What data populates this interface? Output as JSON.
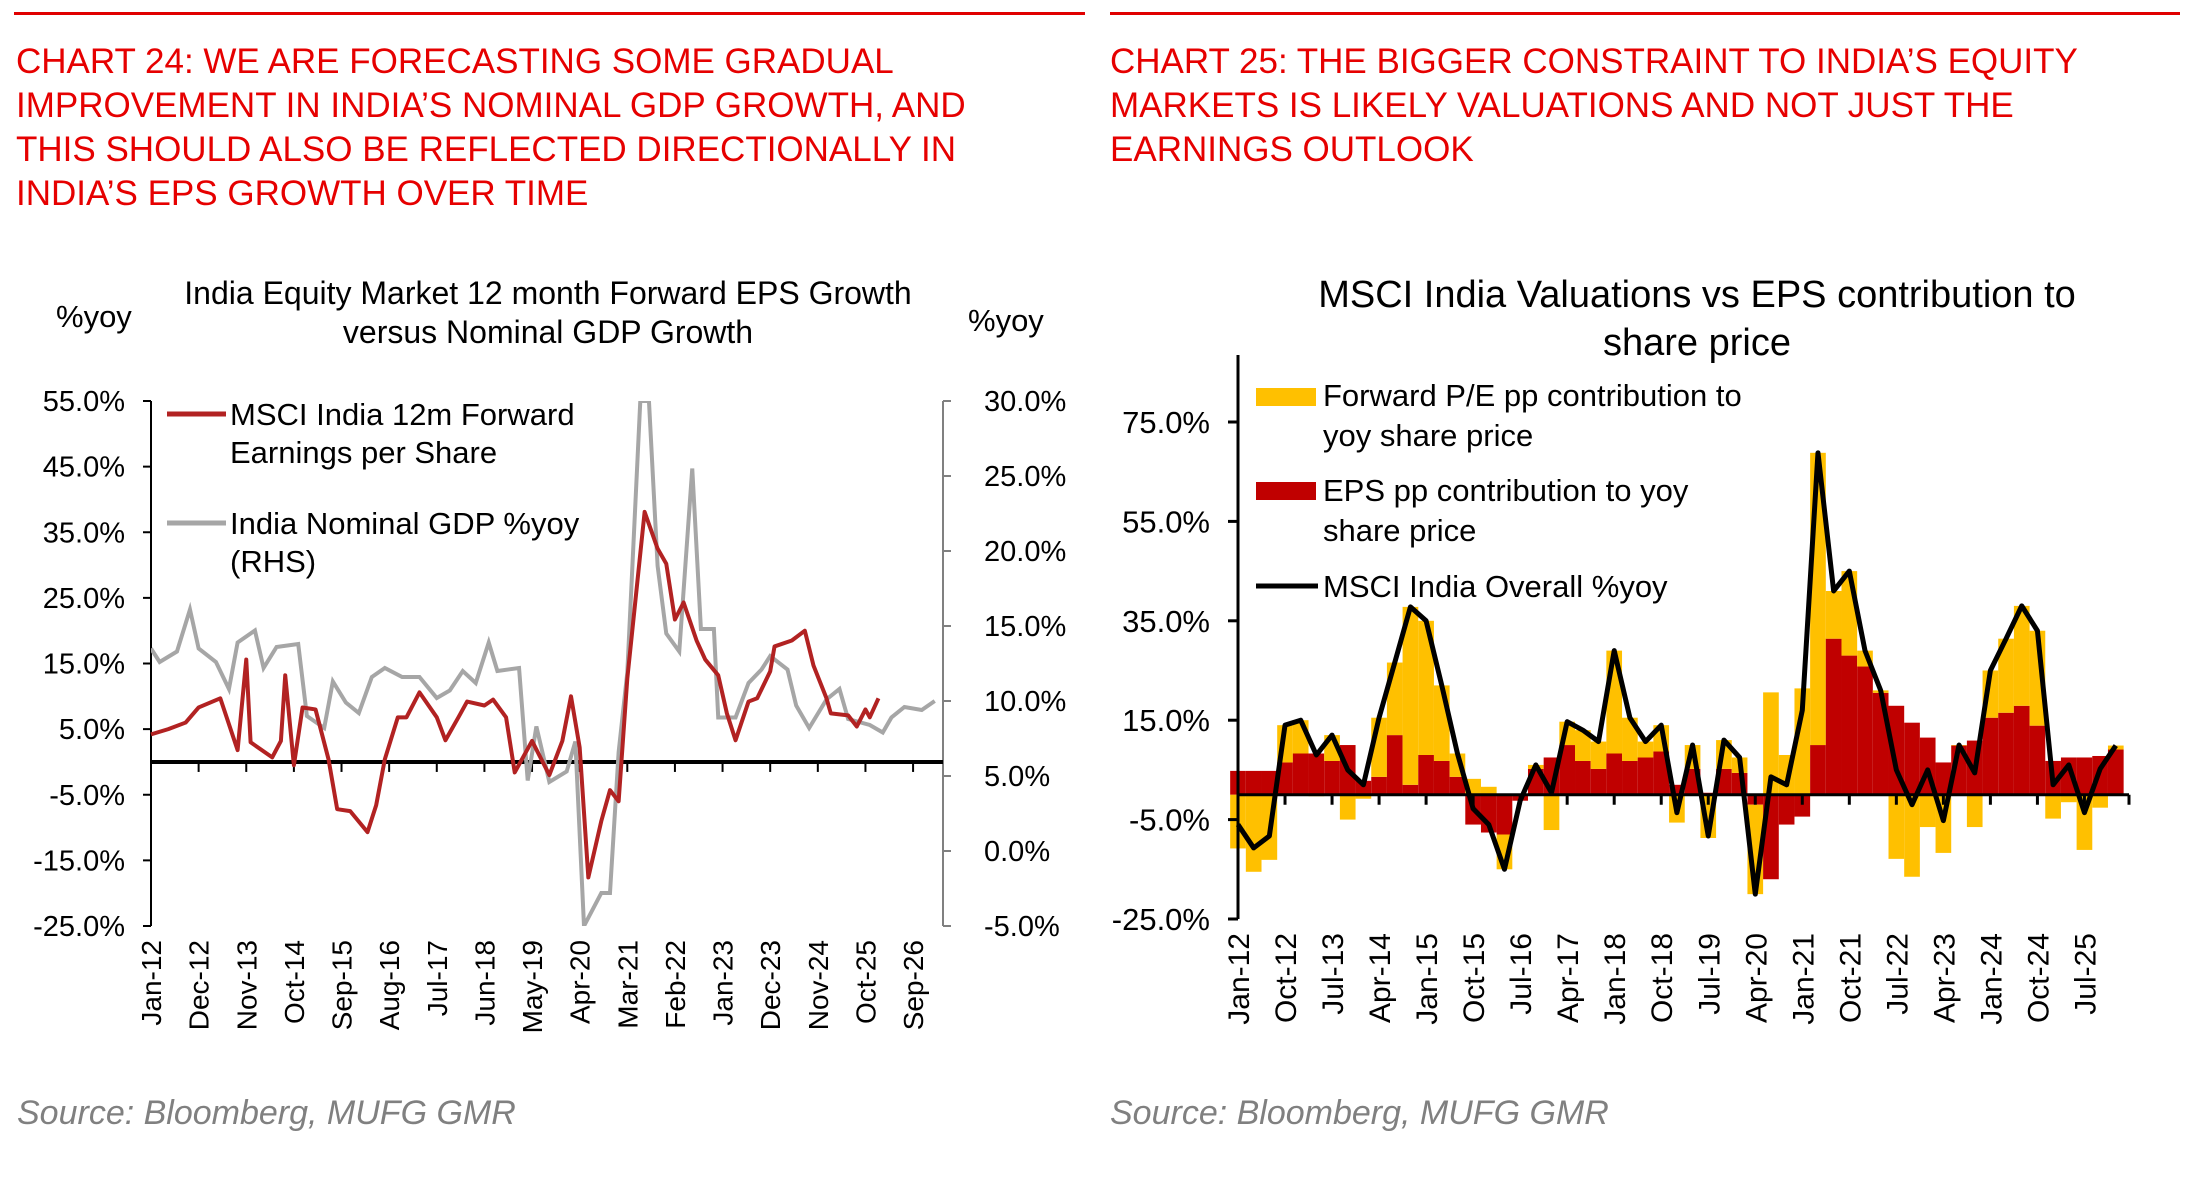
{
  "left_panel": {
    "headline": [
      "CHART 24: WE ARE FORECASTING SOME GRADUAL",
      "IMPROVEMENT IN INDIA’S NOMINAL GDP GROWTH, AND",
      "THIS SHOULD ALSO BE REFLECTED DIRECTIONALLY IN",
      "INDIA’S EPS GROWTH OVER TIME"
    ],
    "source": "Source: Bloomberg, MUFG GMR"
  },
  "right_panel": {
    "headline": [
      "CHART 25: THE BIGGER CONSTRAINT TO INDIA’S EQUITY",
      "MARKETS IS LIKELY VALUATIONS AND NOT JUST THE",
      "EARNINGS OUTLOOK"
    ],
    "source": "Source: Bloomberg, MUFG GMR"
  },
  "colors": {
    "headline": "#e60000",
    "eps_line": "#b22222",
    "gdp_line": "#a6a6a6",
    "pe_bar": "#ffc000",
    "eps_bar": "#c00000",
    "total_line": "#000000"
  },
  "chart_data": [
    {
      "type": "line",
      "title": [
        "India Equity Market 12 month Forward EPS Growth",
        "versus Nominal GDP Growth"
      ],
      "ylabel_left": "%yoy",
      "ylabel_right": "%yoy",
      "ylim_left": [
        -25,
        55
      ],
      "ylim_right": [
        -5,
        30
      ],
      "yticks_left": [
        "55.0%",
        "45.0%",
        "35.0%",
        "25.0%",
        "15.0%",
        "5.0%",
        "-5.0%",
        "-15.0%",
        "-25.0%"
      ],
      "yticks_right": [
        "30.0%",
        "25.0%",
        "20.0%",
        "15.0%",
        "10.0%",
        "5.0%",
        "0.0%",
        "-5.0%"
      ],
      "xticks": [
        "Jan-12",
        "Dec-12",
        "Nov-13",
        "Oct-14",
        "Sep-15",
        "Aug-16",
        "Jul-17",
        "Jun-18",
        "May-19",
        "Apr-20",
        "Mar-21",
        "Feb-22",
        "Jan-23",
        "Dec-23",
        "Nov-24",
        "Oct-25",
        "Sep-26"
      ],
      "legend_position": "top-left",
      "series": [
        {
          "name": "MSCI India 12m Forward Earnings per Share",
          "axis": "left",
          "points": [
            [
              "2012-01",
              4.2
            ],
            [
              "2012-05",
              5
            ],
            [
              "2012-09",
              6
            ],
            [
              "2012-12",
              8.3
            ],
            [
              "2013-05",
              9.7
            ],
            [
              "2013-09",
              1.8
            ],
            [
              "2013-11",
              15.6
            ],
            [
              "2013-12",
              3
            ],
            [
              "2014-05",
              0.7
            ],
            [
              "2014-07",
              3.2
            ],
            [
              "2014-08",
              13.2
            ],
            [
              "2014-10",
              -0.5
            ],
            [
              "2014-12",
              8.3
            ],
            [
              "2015-03",
              8
            ],
            [
              "2015-06",
              0.4
            ],
            [
              "2015-08",
              -7.2
            ],
            [
              "2015-11",
              -7.5
            ],
            [
              "2016-03",
              -10.7
            ],
            [
              "2016-05",
              -6.6
            ],
            [
              "2016-07",
              0.4
            ],
            [
              "2016-10",
              6.8
            ],
            [
              "2016-12",
              6.8
            ],
            [
              "2017-03",
              10.6
            ],
            [
              "2017-07",
              6.8
            ],
            [
              "2017-09",
              3.3
            ],
            [
              "2017-12",
              6.8
            ],
            [
              "2018-02",
              9.2
            ],
            [
              "2018-06",
              8.6
            ],
            [
              "2018-08",
              9.5
            ],
            [
              "2018-11",
              6.8
            ],
            [
              "2019-01",
              -1.6
            ],
            [
              "2019-05",
              3.2
            ],
            [
              "2019-09",
              -2
            ],
            [
              "2019-12",
              3.2
            ],
            [
              "2020-02",
              10
            ],
            [
              "2020-04",
              2.2
            ],
            [
              "2020-06",
              -17.6
            ],
            [
              "2020-09",
              -9
            ],
            [
              "2020-11",
              -4.3
            ],
            [
              "2021-01",
              -6
            ],
            [
              "2021-03",
              12.7
            ],
            [
              "2021-07",
              38.1
            ],
            [
              "2021-10",
              32.5
            ],
            [
              "2021-12",
              30.2
            ],
            [
              "2022-02",
              21.7
            ],
            [
              "2022-04",
              24.3
            ],
            [
              "2022-07",
              18.5
            ],
            [
              "2022-09",
              15.6
            ],
            [
              "2022-12",
              13.2
            ],
            [
              "2023-02",
              7.4
            ],
            [
              "2023-04",
              3.3
            ],
            [
              "2023-07",
              9.2
            ],
            [
              "2023-09",
              9.7
            ],
            [
              "2023-12",
              13.8
            ],
            [
              "2024-01",
              17.6
            ],
            [
              "2024-05",
              18.5
            ],
            [
              "2024-08",
              20
            ],
            [
              "2024-10",
              14.7
            ],
            [
              "2025-01",
              9.7
            ],
            [
              "2025-02",
              7.4
            ],
            [
              "2025-06",
              7.1
            ],
            [
              "2025-08",
              5.4
            ],
            [
              "2025-10",
              8
            ],
            [
              "2025-11",
              6.8
            ],
            [
              "2026-01",
              9.7
            ]
          ]
        },
        {
          "name": "India Nominal GDP %yoy (RHS)",
          "axis": "right",
          "points": [
            [
              "2012-01",
              13.5
            ],
            [
              "2012-03",
              12.6
            ],
            [
              "2012-07",
              13.3
            ],
            [
              "2012-10",
              16.1
            ],
            [
              "2012-12",
              13.5
            ],
            [
              "2013-04",
              12.6
            ],
            [
              "2013-07",
              10.8
            ],
            [
              "2013-09",
              13.9
            ],
            [
              "2014-01",
              14.7
            ],
            [
              "2014-03",
              12.2
            ],
            [
              "2014-06",
              13.6
            ],
            [
              "2014-11",
              13.8
            ],
            [
              "2015-01",
              9.0
            ],
            [
              "2015-05",
              8.2
            ],
            [
              "2015-07",
              11.3
            ],
            [
              "2015-10",
              9.9
            ],
            [
              "2016-01",
              9.2
            ],
            [
              "2016-04",
              11.6
            ],
            [
              "2016-07",
              12.2
            ],
            [
              "2016-11",
              11.6
            ],
            [
              "2017-03",
              11.6
            ],
            [
              "2017-07",
              10.2
            ],
            [
              "2017-10",
              10.7
            ],
            [
              "2018-01",
              12
            ],
            [
              "2018-04",
              11.2
            ],
            [
              "2018-07",
              13.9
            ],
            [
              "2018-09",
              12
            ],
            [
              "2019-02",
              12.2
            ],
            [
              "2019-04",
              4.7
            ],
            [
              "2019-06",
              8.3
            ],
            [
              "2019-09",
              4.6
            ],
            [
              "2020-01",
              5.3
            ],
            [
              "2020-03",
              7.3
            ],
            [
              "2020-05",
              -5
            ],
            [
              "2020-09",
              -2.8
            ],
            [
              "2020-11",
              -2.8
            ],
            [
              "2021-01",
              6.6
            ],
            [
              "2021-03",
              11.9
            ],
            [
              "2021-06",
              30
            ],
            [
              "2021-08",
              30
            ],
            [
              "2021-10",
              19
            ],
            [
              "2021-12",
              14.5
            ],
            [
              "2022-03",
              13.3
            ],
            [
              "2022-06",
              25.5
            ],
            [
              "2022-08",
              14.8
            ],
            [
              "2022-11",
              14.8
            ],
            [
              "2022-12",
              8.9
            ],
            [
              "2023-04",
              8.9
            ],
            [
              "2023-07",
              11.2
            ],
            [
              "2023-10",
              12.1
            ],
            [
              "2023-12",
              13
            ],
            [
              "2024-04",
              12.1
            ],
            [
              "2024-06",
              9.7
            ],
            [
              "2024-09",
              8.2
            ],
            [
              "2025-01",
              10.1
            ],
            [
              "2025-04",
              10.8
            ],
            [
              "2025-06",
              8.8
            ],
            [
              "2025-11",
              8.4
            ],
            [
              "2026-02",
              7.9
            ],
            [
              "2026-04",
              8.9
            ],
            [
              "2026-07",
              9.6
            ],
            [
              "2026-11",
              9.4
            ],
            [
              "2027-02",
              10
            ]
          ]
        }
      ]
    },
    {
      "type": "bar",
      "stacked": true,
      "title": [
        "MSCI India Valuations vs EPS contribution to",
        "share price"
      ],
      "ylim": [
        -25,
        95
      ],
      "yticks": [
        "75.0%",
        "55.0%",
        "35.0%",
        "15.0%",
        "-5.0%",
        "-25.0%"
      ],
      "xticks": [
        "Jan-12",
        "Oct-12",
        "Jul-13",
        "Apr-14",
        "Jan-15",
        "Oct-15",
        "Jul-16",
        "Apr-17",
        "Jan-18",
        "Oct-18",
        "Jul-19",
        "Apr-20",
        "Jan-21",
        "Oct-21",
        "Jul-22",
        "Apr-23",
        "Jan-24",
        "Oct-24",
        "Jul-25"
      ],
      "legend_position": "top-left",
      "dates": [
        "2012-01",
        "2012-04",
        "2012-07",
        "2012-10",
        "2013-01",
        "2013-04",
        "2013-07",
        "2013-10",
        "2014-01",
        "2014-04",
        "2014-07",
        "2014-10",
        "2015-01",
        "2015-04",
        "2015-07",
        "2015-10",
        "2016-01",
        "2016-04",
        "2016-07",
        "2016-10",
        "2017-01",
        "2017-04",
        "2017-07",
        "2017-10",
        "2018-01",
        "2018-04",
        "2018-07",
        "2018-10",
        "2019-01",
        "2019-04",
        "2019-07",
        "2019-10",
        "2020-01",
        "2020-04",
        "2020-07",
        "2020-10",
        "2021-01",
        "2021-04",
        "2021-07",
        "2021-10",
        "2022-01",
        "2022-04",
        "2022-07",
        "2022-10",
        "2023-01",
        "2023-04",
        "2023-07",
        "2023-10",
        "2024-01",
        "2024-04",
        "2024-07",
        "2024-10",
        "2025-01",
        "2025-04",
        "2025-07",
        "2025-10",
        "2026-01"
      ],
      "series": [
        {
          "name": "Forward P/E pp contribution to yoy share price",
          "kind": "bar",
          "values": [
            -10.8,
            -15.5,
            -13.1,
            7.5,
            6.7,
            -0.3,
            5.2,
            -5,
            -0.8,
            11.9,
            14.6,
            35.8,
            27,
            15.2,
            4.7,
            3.2,
            1.6,
            -7,
            0,
            0.8,
            -7.1,
            4.7,
            6.2,
            5.5,
            20.7,
            8.7,
            3.2,
            5.3,
            -5.6,
            4.8,
            -8.7,
            5.8,
            3.1,
            -18,
            20.6,
            8,
            21.4,
            58.8,
            9.6,
            17,
            3.2,
            0.5,
            -12.9,
            -16.5,
            -6.5,
            -11.7,
            0.1,
            -6.5,
            9.5,
            14.9,
            20.1,
            19.1,
            -4.8,
            -1.5,
            -11.1,
            -2.6,
            0.8
          ]
        },
        {
          "name": "EPS pp contribution to yoy share price",
          "kind": "bar",
          "values": [
            4.8,
            4.8,
            4.8,
            6.5,
            8.3,
            8.3,
            6.8,
            10,
            2.8,
            3.6,
            12,
            2,
            8,
            6.8,
            3.6,
            -6,
            -7.6,
            -8,
            -1.2,
            5.2,
            7.5,
            10,
            6.8,
            5.2,
            8.3,
            6.8,
            7.5,
            8.7,
            2,
            5.2,
            0.4,
            5.2,
            4.4,
            -2,
            -17,
            -6,
            -4.4,
            10,
            31.4,
            28,
            25.8,
            20.5,
            17.9,
            14.5,
            11.5,
            6.5,
            9.9,
            10.9,
            15.5,
            16.5,
            17.9,
            13.9,
            6.8,
            7.5,
            7.5,
            7.8,
            9.1
          ]
        },
        {
          "name": "MSCI India Overall %yoy",
          "kind": "line",
          "values": [
            -6,
            -10.7,
            -8.3,
            14,
            15,
            8,
            12,
            5,
            2,
            15.5,
            26.6,
            37.8,
            35,
            22,
            8.3,
            -2.8,
            -6,
            -15,
            -1.2,
            6,
            0.4,
            14.7,
            13,
            10.7,
            29,
            15.5,
            10.7,
            14,
            -3.6,
            10,
            -8.3,
            11,
            7.5,
            -20,
            3.6,
            2,
            17,
            68.8,
            41,
            45,
            29,
            21,
            5,
            -2,
            5,
            -5.2,
            10,
            4.4,
            25,
            31.4,
            38,
            33,
            2,
            6,
            -3.6,
            5.2,
            9.9
          ]
        }
      ]
    }
  ]
}
